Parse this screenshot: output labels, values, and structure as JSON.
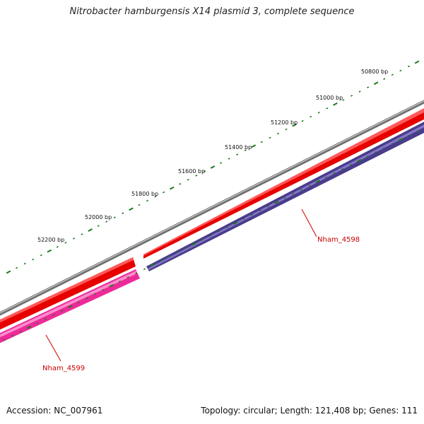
{
  "title": "Nitrobacter hamburgensis X14 plasmid 3, complete sequence",
  "footer": {
    "accession": "Accession: NC_007961",
    "summary": "Topology: circular; Length: 121,408 bp; Genes: 111"
  },
  "scale_labels": [
    "50800 bp",
    "51000 bp",
    "51200 bp",
    "51400 bp",
    "51600 bp",
    "51800 bp",
    "52000 bp",
    "52200 bp"
  ],
  "genes": [
    {
      "name": "Nham_4598",
      "strand": "forward",
      "color": "#ee0000"
    },
    {
      "name": "Nham_4598",
      "strand": "reverse",
      "color": "#4a3c8c"
    },
    {
      "name": "Nham_4599",
      "strand": "forward",
      "color": "#ee0000"
    },
    {
      "name": "Nham_4599",
      "strand": "reverse",
      "color": "#ee2a9a"
    }
  ],
  "colors": {
    "backbone": "#808080",
    "ticks": "#1a7a1a",
    "forward_gene": "#ee0000",
    "reverse_gene_4598": "#4a3c8c",
    "reverse_gene_4599": "#ee2a9a",
    "gene_label": "#cc0000"
  }
}
